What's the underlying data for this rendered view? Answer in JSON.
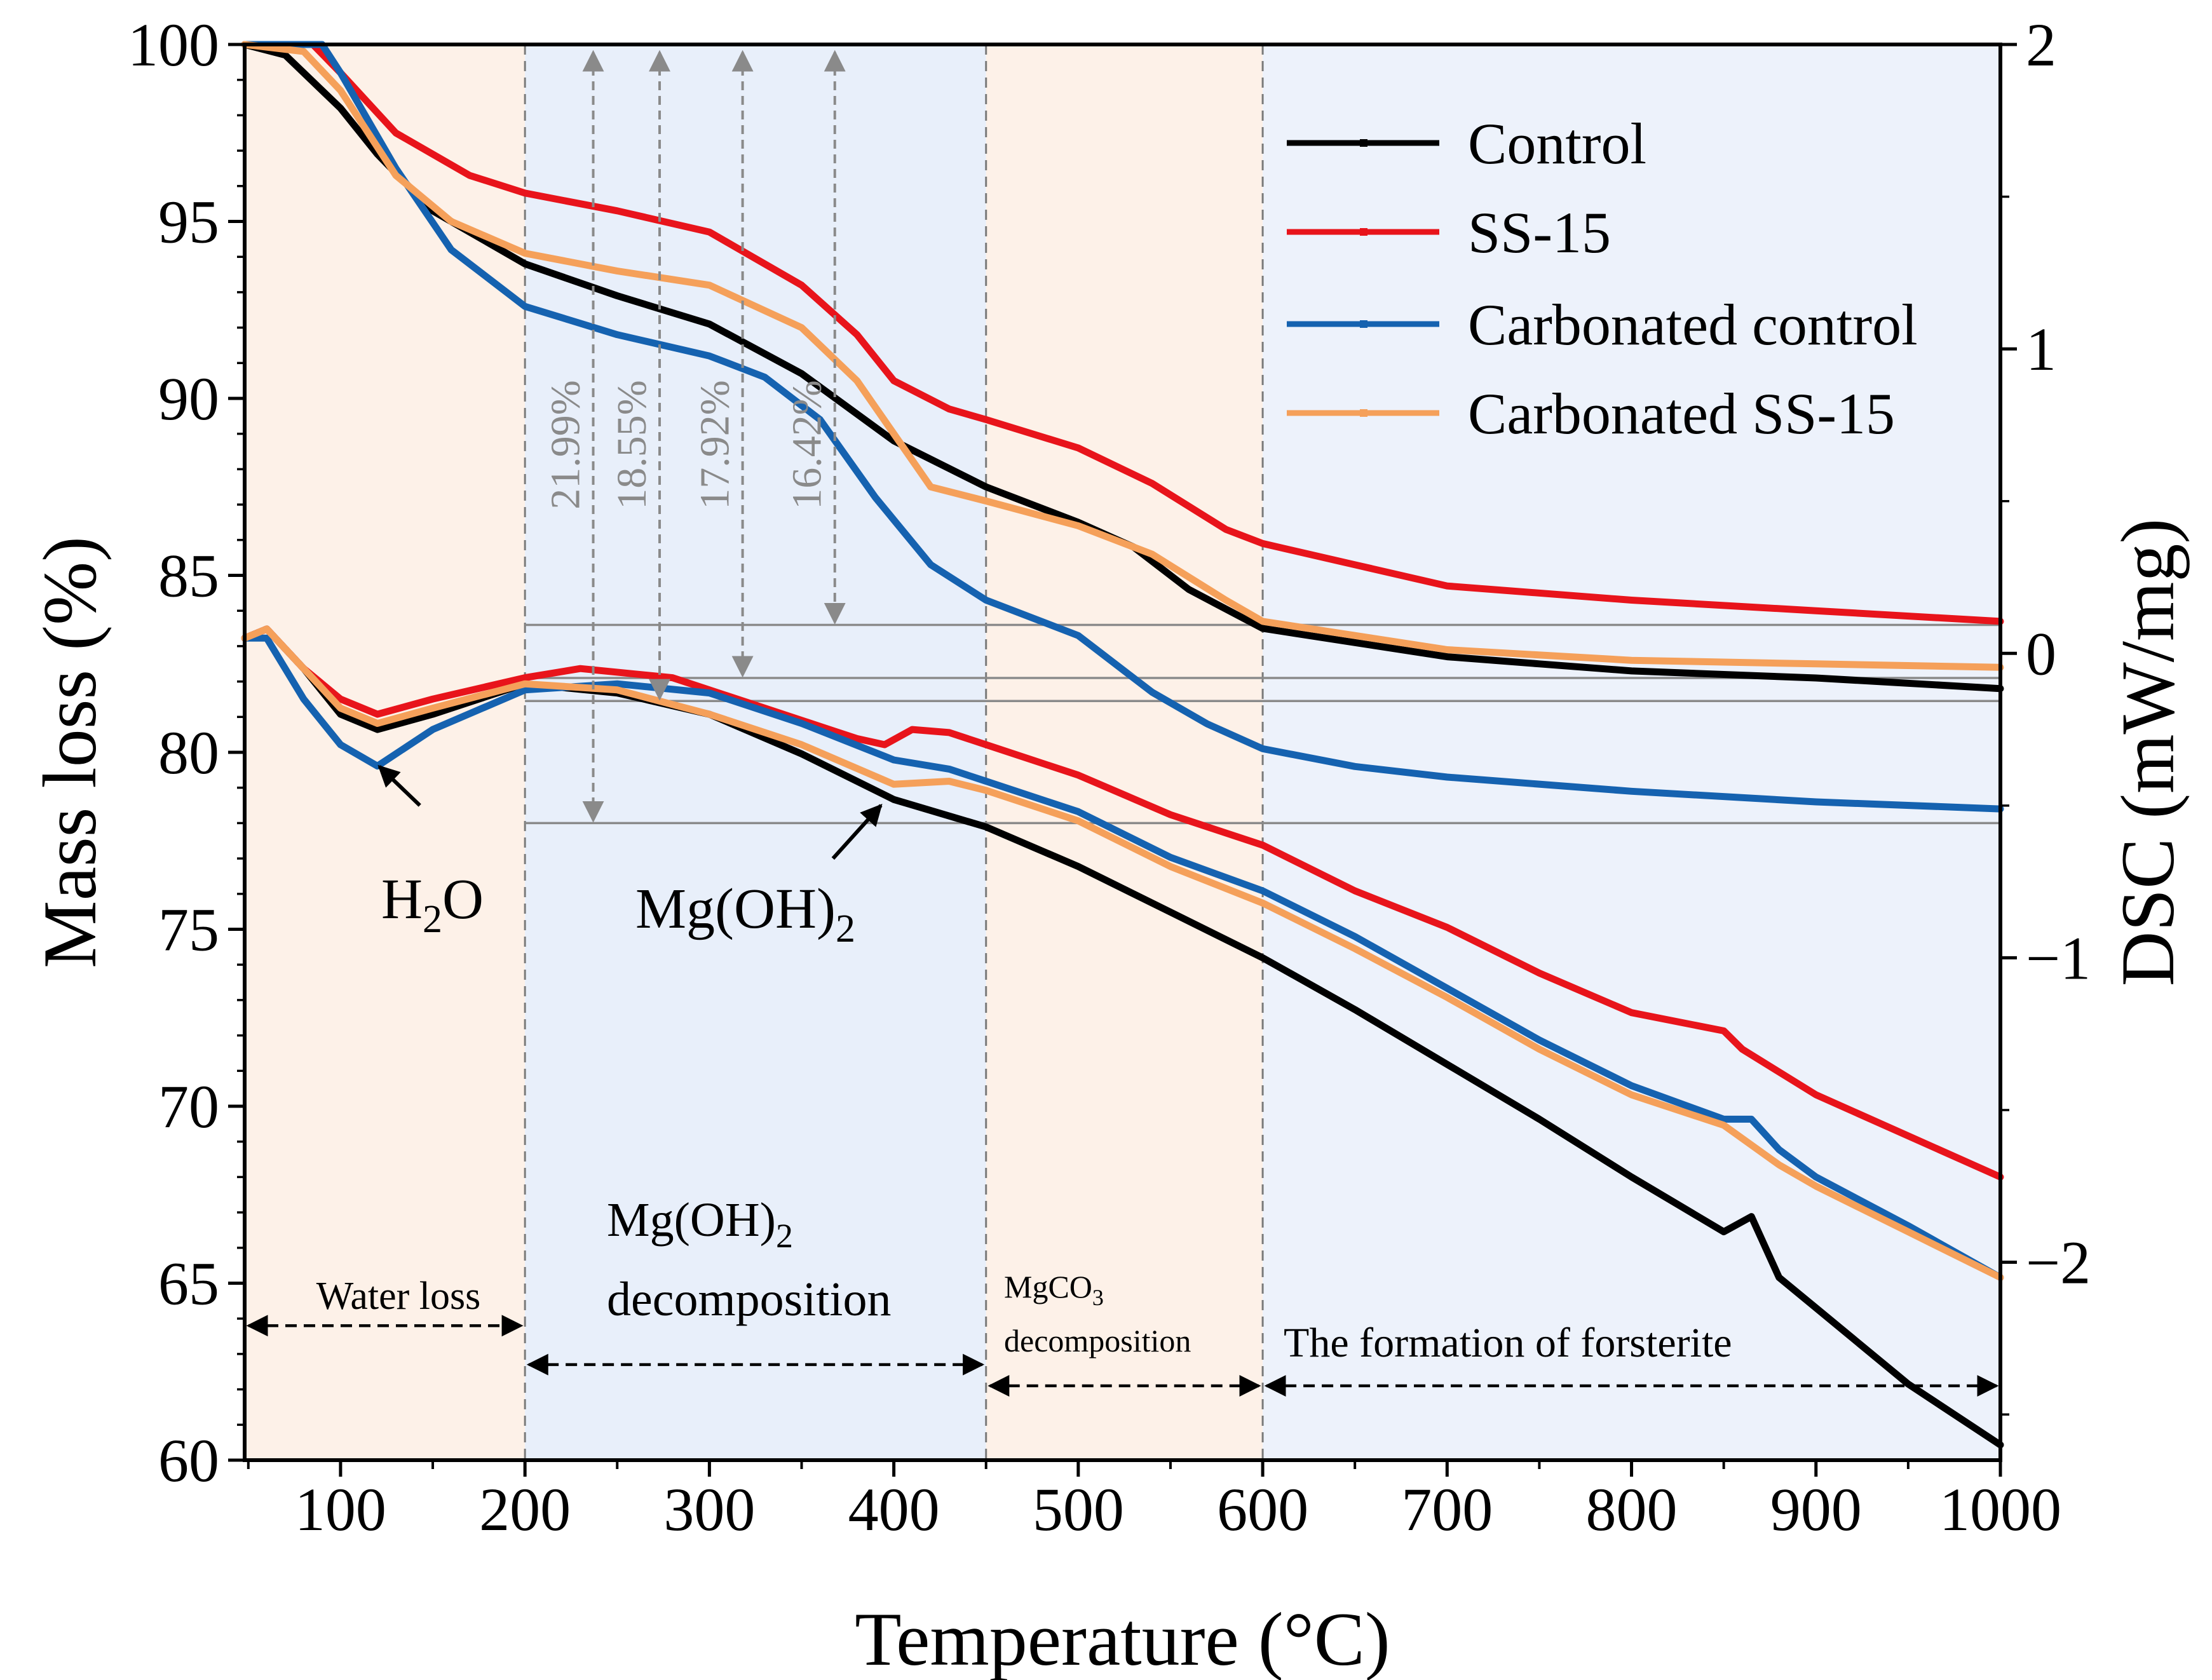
{
  "chart_data": {
    "type": "line",
    "xlabel": "Temperature (°C)",
    "ylabel_left": "Mass loss (%)",
    "ylabel_right": "DSC (mW/mg)",
    "xlim": [
      48,
      1000
    ],
    "ylim_left": [
      60,
      100
    ],
    "ylim_right": [
      -2.65,
      2
    ],
    "xticks": [
      100,
      200,
      300,
      400,
      500,
      600,
      700,
      800,
      900,
      1000
    ],
    "yticks_left": [
      60,
      65,
      70,
      75,
      80,
      85,
      90,
      95,
      100
    ],
    "yticks_right": [
      -2,
      -1,
      0,
      1,
      2
    ],
    "legend_position": "top-right",
    "regions": [
      {
        "from": 48,
        "to": 200,
        "color": "#fdf1e8"
      },
      {
        "from": 200,
        "to": 450,
        "color": "#e8effa"
      },
      {
        "from": 450,
        "to": 600,
        "color": "#fdf1e8"
      },
      {
        "from": 600,
        "to": 1000,
        "color": "#edf2fb"
      }
    ],
    "divider_lines_x": [
      200,
      450,
      600
    ],
    "series": [
      {
        "name": "Control",
        "color": "#000000",
        "tg": [
          [
            48,
            100
          ],
          [
            70,
            99.7
          ],
          [
            100,
            98.2
          ],
          [
            120,
            96.9
          ],
          [
            150,
            95.3
          ],
          [
            200,
            93.8
          ],
          [
            250,
            92.9
          ],
          [
            300,
            92.1
          ],
          [
            350,
            90.7
          ],
          [
            400,
            88.8
          ],
          [
            450,
            87.5
          ],
          [
            500,
            86.5
          ],
          [
            530,
            85.8
          ],
          [
            560,
            84.6
          ],
          [
            600,
            83.5
          ],
          [
            650,
            83.1
          ],
          [
            700,
            82.7
          ],
          [
            750,
            82.5
          ],
          [
            800,
            82.3
          ],
          [
            850,
            82.2
          ],
          [
            900,
            82.1
          ],
          [
            1000,
            81.8
          ]
        ],
        "dsc": [
          [
            48,
            0.05
          ],
          [
            60,
            0.08
          ],
          [
            80,
            -0.05
          ],
          [
            100,
            -0.2
          ],
          [
            120,
            -0.25
          ],
          [
            150,
            -0.2
          ],
          [
            200,
            -0.1
          ],
          [
            250,
            -0.13
          ],
          [
            300,
            -0.2
          ],
          [
            350,
            -0.33
          ],
          [
            400,
            -0.48
          ],
          [
            450,
            -0.57
          ],
          [
            500,
            -0.7
          ],
          [
            550,
            -0.85
          ],
          [
            600,
            -1.0
          ],
          [
            650,
            -1.17
          ],
          [
            700,
            -1.35
          ],
          [
            750,
            -1.53
          ],
          [
            800,
            -1.72
          ],
          [
            850,
            -1.9
          ],
          [
            865,
            -1.85
          ],
          [
            880,
            -2.05
          ],
          [
            900,
            -2.15
          ],
          [
            950,
            -2.4
          ],
          [
            1000,
            -2.6
          ]
        ]
      },
      {
        "name": "SS-15",
        "color": "#e8141b",
        "tg": [
          [
            48,
            100
          ],
          [
            85,
            100
          ],
          [
            100,
            99.2
          ],
          [
            130,
            97.5
          ],
          [
            170,
            96.3
          ],
          [
            200,
            95.8
          ],
          [
            250,
            95.3
          ],
          [
            300,
            94.7
          ],
          [
            350,
            93.2
          ],
          [
            380,
            91.8
          ],
          [
            400,
            90.5
          ],
          [
            430,
            89.7
          ],
          [
            450,
            89.4
          ],
          [
            500,
            88.6
          ],
          [
            540,
            87.6
          ],
          [
            580,
            86.3
          ],
          [
            600,
            85.9
          ],
          [
            650,
            85.3
          ],
          [
            700,
            84.7
          ],
          [
            800,
            84.3
          ],
          [
            900,
            84.0
          ],
          [
            1000,
            83.7
          ]
        ],
        "dsc": [
          [
            48,
            0.05
          ],
          [
            60,
            0.08
          ],
          [
            80,
            -0.05
          ],
          [
            100,
            -0.15
          ],
          [
            120,
            -0.2
          ],
          [
            150,
            -0.15
          ],
          [
            200,
            -0.08
          ],
          [
            230,
            -0.05
          ],
          [
            280,
            -0.08
          ],
          [
            330,
            -0.18
          ],
          [
            380,
            -0.28
          ],
          [
            395,
            -0.3
          ],
          [
            410,
            -0.25
          ],
          [
            430,
            -0.26
          ],
          [
            450,
            -0.3
          ],
          [
            500,
            -0.4
          ],
          [
            550,
            -0.53
          ],
          [
            600,
            -0.63
          ],
          [
            650,
            -0.78
          ],
          [
            700,
            -0.9
          ],
          [
            750,
            -1.05
          ],
          [
            800,
            -1.18
          ],
          [
            850,
            -1.24
          ],
          [
            860,
            -1.3
          ],
          [
            900,
            -1.45
          ],
          [
            1000,
            -1.72
          ]
        ]
      },
      {
        "name": "Carbonated control",
        "color": "#1562b0",
        "tg": [
          [
            48,
            100
          ],
          [
            90,
            100
          ],
          [
            100,
            99.2
          ],
          [
            130,
            96.5
          ],
          [
            160,
            94.2
          ],
          [
            200,
            92.6
          ],
          [
            250,
            91.8
          ],
          [
            300,
            91.2
          ],
          [
            330,
            90.6
          ],
          [
            360,
            89.4
          ],
          [
            390,
            87.2
          ],
          [
            420,
            85.3
          ],
          [
            450,
            84.3
          ],
          [
            500,
            83.3
          ],
          [
            540,
            81.7
          ],
          [
            570,
            80.8
          ],
          [
            600,
            80.1
          ],
          [
            650,
            79.6
          ],
          [
            700,
            79.3
          ],
          [
            800,
            78.9
          ],
          [
            900,
            78.6
          ],
          [
            1000,
            78.4
          ]
        ],
        "dsc": [
          [
            48,
            0.05
          ],
          [
            60,
            0.05
          ],
          [
            80,
            -0.15
          ],
          [
            100,
            -0.3
          ],
          [
            120,
            -0.37
          ],
          [
            150,
            -0.25
          ],
          [
            200,
            -0.12
          ],
          [
            250,
            -0.1
          ],
          [
            300,
            -0.13
          ],
          [
            350,
            -0.23
          ],
          [
            400,
            -0.35
          ],
          [
            430,
            -0.38
          ],
          [
            450,
            -0.42
          ],
          [
            500,
            -0.52
          ],
          [
            550,
            -0.67
          ],
          [
            600,
            -0.78
          ],
          [
            650,
            -0.93
          ],
          [
            700,
            -1.1
          ],
          [
            750,
            -1.27
          ],
          [
            800,
            -1.42
          ],
          [
            850,
            -1.53
          ],
          [
            865,
            -1.53
          ],
          [
            880,
            -1.63
          ],
          [
            900,
            -1.72
          ],
          [
            950,
            -1.88
          ],
          [
            1000,
            -2.05
          ]
        ]
      },
      {
        "name": "Carbonated SS-15",
        "color": "#f5a05a",
        "tg": [
          [
            48,
            100
          ],
          [
            80,
            99.8
          ],
          [
            100,
            98.7
          ],
          [
            130,
            96.3
          ],
          [
            160,
            95.0
          ],
          [
            200,
            94.1
          ],
          [
            250,
            93.6
          ],
          [
            300,
            93.2
          ],
          [
            350,
            92.0
          ],
          [
            380,
            90.5
          ],
          [
            400,
            89.0
          ],
          [
            420,
            87.5
          ],
          [
            450,
            87.1
          ],
          [
            500,
            86.4
          ],
          [
            540,
            85.6
          ],
          [
            580,
            84.3
          ],
          [
            600,
            83.7
          ],
          [
            650,
            83.3
          ],
          [
            700,
            82.9
          ],
          [
            800,
            82.6
          ],
          [
            900,
            82.5
          ],
          [
            1000,
            82.4
          ]
        ],
        "dsc": [
          [
            48,
            0.05
          ],
          [
            60,
            0.08
          ],
          [
            80,
            -0.05
          ],
          [
            100,
            -0.18
          ],
          [
            120,
            -0.23
          ],
          [
            150,
            -0.18
          ],
          [
            200,
            -0.1
          ],
          [
            250,
            -0.12
          ],
          [
            300,
            -0.2
          ],
          [
            350,
            -0.3
          ],
          [
            400,
            -0.43
          ],
          [
            430,
            -0.42
          ],
          [
            450,
            -0.45
          ],
          [
            500,
            -0.55
          ],
          [
            550,
            -0.7
          ],
          [
            600,
            -0.82
          ],
          [
            650,
            -0.97
          ],
          [
            700,
            -1.13
          ],
          [
            750,
            -1.3
          ],
          [
            800,
            -1.45
          ],
          [
            850,
            -1.55
          ],
          [
            880,
            -1.68
          ],
          [
            900,
            -1.75
          ],
          [
            950,
            -1.9
          ],
          [
            1000,
            -2.05
          ]
        ]
      }
    ],
    "mass_loss_annotations": [
      {
        "x": 237,
        "label": "21.99%",
        "from_y": 100,
        "to_y": 78.0
      },
      {
        "x": 273,
        "label": "18.55%",
        "from_y": 100,
        "to_y": 81.45
      },
      {
        "x": 318,
        "label": "17.92%",
        "from_y": 100,
        "to_y": 82.1
      },
      {
        "x": 368,
        "label": "16.42%",
        "from_y": 100,
        "to_y": 83.6
      }
    ],
    "reference_levels": [
      83.6,
      82.1,
      81.45,
      78.0
    ],
    "peak_labels": [
      {
        "text": "H",
        "sub": "2",
        "rest": "O",
        "arrow_from": [
          143,
          78.5
        ],
        "arrow_to": [
          121,
          79.6
        ]
      },
      {
        "text": "Mg(OH)",
        "sub": "2",
        "rest": "",
        "arrow_from": [
          367,
          77.0
        ],
        "arrow_to": [
          393,
          78.5
        ]
      }
    ],
    "stage_labels": [
      {
        "line1": "Water loss",
        "line1_sub": "",
        "line2": "",
        "from": 48,
        "to": 200,
        "arrow_y": 63.8
      },
      {
        "line1": "Mg(OH)",
        "line1_sub": "2",
        "line2": "decomposition",
        "from": 200,
        "to": 450,
        "arrow_y": 62.7
      },
      {
        "line1": "MgCO",
        "line1_sub": "3",
        "line2": "decomposition",
        "from": 450,
        "to": 600,
        "arrow_y": 62.1
      },
      {
        "line1": "The formation of forsterite",
        "line1_sub": "",
        "line2": "",
        "from": 600,
        "to": 1000,
        "arrow_y": 62.1
      }
    ]
  }
}
